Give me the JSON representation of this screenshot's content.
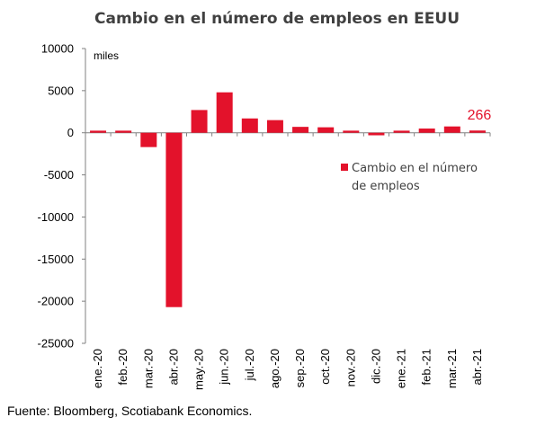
{
  "chart_data": {
    "type": "bar",
    "title": "Cambio en el número de empleos en EEUU",
    "ylabel": "miles",
    "xlabel": "",
    "ylim": [
      -25000,
      10000
    ],
    "yticks": [
      10000,
      5000,
      0,
      -5000,
      -10000,
      -15000,
      -20000,
      -25000
    ],
    "categories": [
      "ene.-20",
      "feb.-20",
      "mar.-20",
      "abr.-20",
      "may.-20",
      "jun.-20",
      "jul.-20",
      "ago.-20",
      "sep.-20",
      "oct.-20",
      "nov.-20",
      "dic.-20",
      "ene.-21",
      "feb.-21",
      "mar.-21",
      "abr.-21"
    ],
    "series": [
      {
        "name": "Cambio en el número de empleos",
        "color": "#e3122b",
        "values": [
          250,
          250,
          -1700,
          -20700,
          2700,
          4800,
          1700,
          1500,
          700,
          650,
          250,
          -300,
          250,
          500,
          750,
          266
        ]
      }
    ],
    "legend": {
      "position": "right",
      "line1": "Cambio en el número",
      "line2": "de empleos"
    },
    "annotation": {
      "text": "266",
      "category": "abr.-21",
      "color": "#e3122b"
    },
    "grid": false
  },
  "source": "Fuente: Bloomberg, Scotiabank Economics."
}
